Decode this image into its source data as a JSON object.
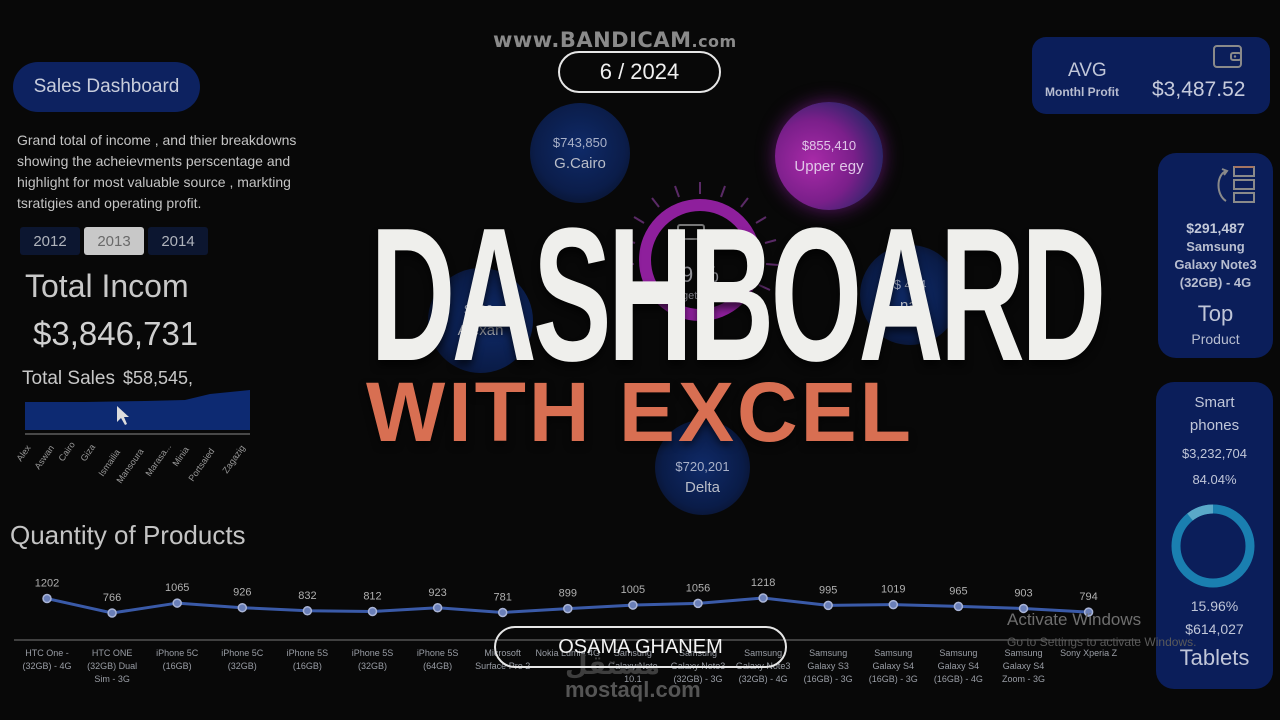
{
  "watermark": {
    "main": "www.BANDICAM",
    "suffix": ".com"
  },
  "date_pill": "6 / 2024",
  "header": {
    "title": "Sales Dashboard",
    "description": "Grand total of income , and thier breakdowns showing the acheievments perscentage and highlight for most valuable source , markting tsratigies and operating profit."
  },
  "years": [
    {
      "label": "2012",
      "active": false
    },
    {
      "label": "2013",
      "active": true
    },
    {
      "label": "2014",
      "active": false
    }
  ],
  "totals": {
    "income_label": "Total Incom",
    "income_value": "$3,846,731",
    "sales_label": "Total Sales",
    "sales_value": "$58,545,"
  },
  "cities": [
    "Alex",
    "Aswan",
    "Cairo",
    "Giza",
    "Ismailia",
    "Mansoura",
    "Marasa...",
    "Minia",
    "Portsaied",
    "Zagazig"
  ],
  "regions": {
    "gcairo": {
      "amount": "$743,850",
      "name": "G.Cairo"
    },
    "upper": {
      "amount": "$855,410",
      "name": "Upper egy"
    },
    "alex": {
      "amount": "$730,",
      "name": "Alexan"
    },
    "canal": {
      "amount": "$ 484",
      "name": "nal"
    },
    "delta": {
      "amount": "$720,201",
      "name": "Delta"
    }
  },
  "gauge": {
    "percent": "9 %",
    "label": "get ved",
    "color": "#8e1f9c"
  },
  "avg_profit": {
    "title": "AVG",
    "subtitle": "Monthl Profit",
    "value": "$3,487.52",
    "icon": "wallet-icon"
  },
  "top_product": {
    "amount": "$291,487",
    "name_lines": [
      "Samsung",
      "Galaxy Note3",
      "(32GB) - 4G"
    ],
    "label": "Top",
    "sublabel": "Product",
    "icon": "rank-list-icon"
  },
  "categories": {
    "smart_title_1": "Smart",
    "smart_title_2": "phones",
    "smart_amount": "$3,232,704",
    "smart_pct": "84.04%",
    "tablet_pct": "15.96%",
    "tablet_amount": "$614,027",
    "tablet_title": "Tablets"
  },
  "quantity": {
    "title": "Quantity of Products",
    "products": [
      "HTC One - (32GB) - 4G",
      "HTC ONE (32GB) Dual Sim - 3G",
      "iPhone 5C (16GB)",
      "iPhone 5C (32GB)",
      "iPhone 5S (16GB)",
      "iPhone 5S (32GB)",
      "iPhone 5S (64GB)",
      "Microsoft Surface Pro 2",
      "Nokia Lumia 4G",
      "Samsung Galaxy Note 10.1",
      "Samsung Galaxy Note3 (32GB) - 3G",
      "Samsung Galaxy Note3 (32GB) - 4G",
      "Samsung Galaxy S3 (16GB) - 3G",
      "Samsung Galaxy S4 (16GB) - 3G",
      "Samsung Galaxy S4 (16GB) - 4G",
      "Samsung Galaxy S4 Zoom - 3G",
      "Sony Xperia Z"
    ],
    "values": [
      1202,
      766,
      1065,
      926,
      832,
      812,
      923,
      781,
      899,
      1005,
      1056,
      1218,
      995,
      1019,
      965,
      903,
      794
    ]
  },
  "chart_data": {
    "type": "line",
    "title": "Quantity of Products",
    "categories": [
      "HTC One - (32GB) - 4G",
      "HTC ONE (32GB) Dual Sim - 3G",
      "iPhone 5C (16GB)",
      "iPhone 5C (32GB)",
      "iPhone 5S (16GB)",
      "iPhone 5S (32GB)",
      "iPhone 5S (64GB)",
      "Microsoft Surface Pro 2",
      "Nokia Lumia 4G",
      "Samsung Galaxy Note 10.1",
      "Samsung Galaxy Note3 (32GB) - 3G",
      "Samsung Galaxy Note3 (32GB) - 4G",
      "Samsung Galaxy S3 (16GB) - 3G",
      "Samsung Galaxy S4 (16GB) - 3G",
      "Samsung Galaxy S4 (16GB) - 4G",
      "Samsung Galaxy S4 Zoom - 3G",
      "Sony Xperia Z"
    ],
    "values": [
      1202,
      766,
      1065,
      926,
      832,
      812,
      923,
      781,
      899,
      1005,
      1056,
      1218,
      995,
      1019,
      965,
      903,
      794
    ],
    "xlabel": "",
    "ylabel": "",
    "grid": false,
    "legend": "none"
  },
  "windows_notice": {
    "title": "Activate Windows",
    "subtitle": "Go to Settings to activate Windows."
  },
  "overlay": {
    "title": "DASHBOARD",
    "subtitle": "WITH EXCEL",
    "author": "OSAMA GHANEM",
    "site": "mostaql.com",
    "site_ar": "مستقل"
  },
  "colors": {
    "card_bg": "#0b1e5a",
    "accent_orange": "#d86f52",
    "accent_purple": "#8e1f9c",
    "line_blue": "#3a5aa8",
    "donut_blue": "#1a7fb0"
  }
}
